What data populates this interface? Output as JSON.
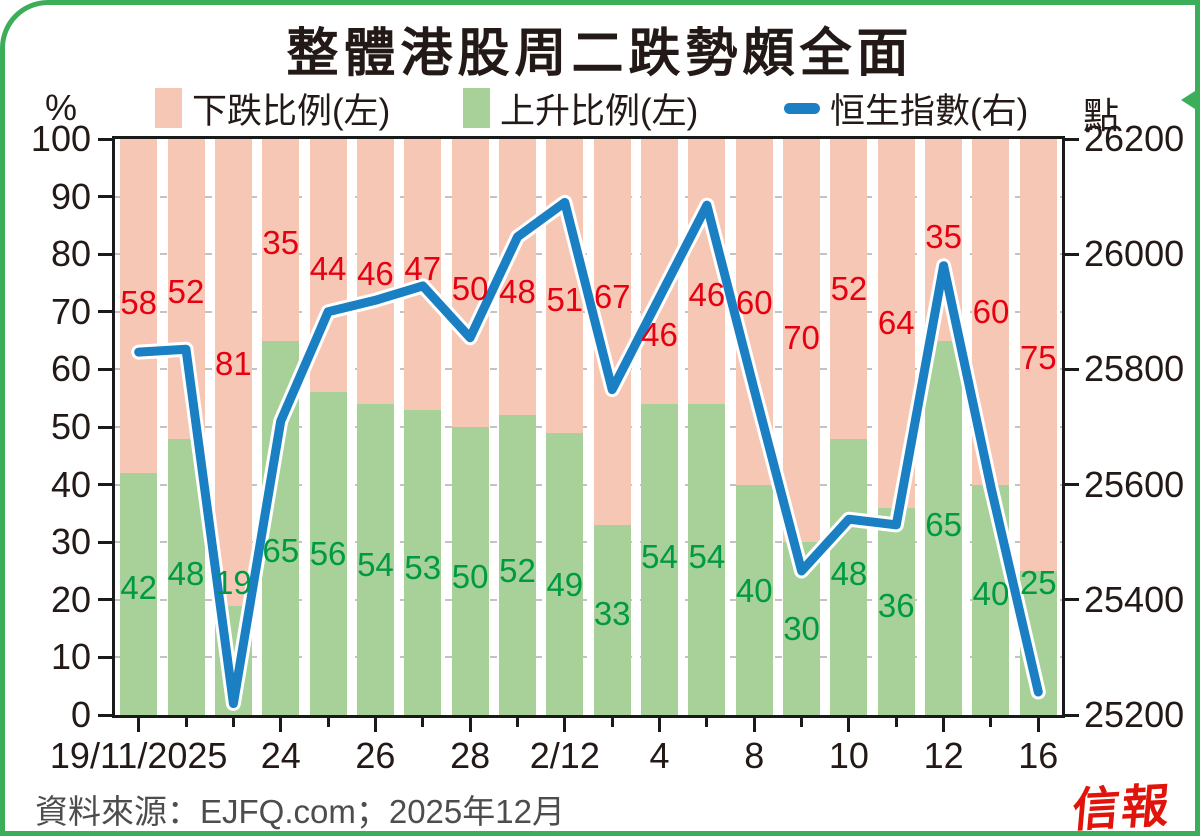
{
  "window": {
    "title": "整體港股周二跌勢頗全面"
  },
  "legend": [
    {
      "label": "下跌比例(左)",
      "swatch": "bar",
      "color": "#f6c7b4"
    },
    {
      "label": "上升比例(左)",
      "swatch": "bar",
      "color": "#a7d198"
    },
    {
      "label": "恒生指數(右)",
      "swatch": "line",
      "color": "#1b7fc3"
    }
  ],
  "axes": {
    "left_unit": "%",
    "right_unit": "點",
    "left_ticks": [
      100,
      90,
      80,
      70,
      60,
      50,
      40,
      30,
      20,
      10,
      0
    ],
    "right_ticks": [
      26200,
      26000,
      25800,
      25600,
      25400,
      25200
    ],
    "left_min": 0,
    "left_max": 100,
    "right_min": 25200,
    "right_max": 26200,
    "grid": "dashed horizontal every 10% behind bars"
  },
  "chart_data": {
    "type": "bar+line",
    "bar_count": 20,
    "categories": [
      "19/11/2025",
      "",
      "",
      "24",
      "",
      "26",
      "",
      "28",
      "",
      "2/12",
      "",
      "4",
      "",
      "8",
      "",
      "10",
      "",
      "12",
      "",
      "16"
    ],
    "x_major_ticks": [
      {
        "bar": 0,
        "label": "19/11/2025"
      },
      {
        "bar": 3,
        "label": "24"
      },
      {
        "bar": 5,
        "label": "26"
      },
      {
        "bar": 7,
        "label": "28"
      },
      {
        "bar": 9,
        "label": "2/12"
      },
      {
        "bar": 11,
        "label": "4"
      },
      {
        "bar": 13,
        "label": "8"
      },
      {
        "bar": 15,
        "label": "10"
      },
      {
        "bar": 17,
        "label": "12"
      },
      {
        "bar": 19,
        "label": "16"
      }
    ],
    "series": [
      {
        "name": "下跌比例(左)",
        "type": "bar",
        "axis": "left",
        "stack_pos": "top",
        "color": "#f6c7b4",
        "label_color": "#e60012",
        "values": [
          58,
          52,
          81,
          35,
          44,
          46,
          47,
          50,
          48,
          51,
          67,
          46,
          46,
          60,
          70,
          52,
          64,
          35,
          60,
          75
        ],
        "label_pos_pct": [
          71.5,
          73.5,
          61,
          82,
          77.5,
          76.5,
          77.5,
          74,
          73.5,
          72,
          72.5,
          66,
          73,
          71.5,
          65.5,
          74,
          68,
          83,
          70,
          62
        ]
      },
      {
        "name": "上升比例(左)",
        "type": "bar",
        "axis": "left",
        "stack_pos": "bottom",
        "color": "#a7d198",
        "label_color": "#009a44",
        "values": [
          42,
          48,
          19,
          65,
          56,
          54,
          53,
          50,
          52,
          49,
          33,
          54,
          54,
          40,
          30,
          48,
          36,
          65,
          40,
          25
        ],
        "label_pos_pct": [
          22,
          24.5,
          23,
          28.5,
          28,
          26,
          25.5,
          24,
          25,
          22.5,
          17.5,
          27.5,
          27.5,
          21.5,
          15,
          24.5,
          19,
          33,
          21,
          23
        ]
      },
      {
        "name": "恒生指數(右)",
        "type": "line",
        "axis": "right",
        "color": "#1b7fc3",
        "casing_color": "#ffffff",
        "values": [
          25830,
          25835,
          25220,
          25710,
          25900,
          25920,
          25945,
          25855,
          26030,
          26090,
          25765,
          25925,
          26085,
          25765,
          25450,
          25540,
          25530,
          25980,
          25595,
          25240
        ]
      }
    ]
  },
  "footer": {
    "source": "資料來源：EJFQ.com；2025年12月",
    "logo": "信報"
  },
  "colors": {
    "border_green": "#3cae5a",
    "bar_down_pink": "#f6c7b4",
    "bar_up_green": "#a7d198",
    "down_label_red": "#e60012",
    "up_label_green": "#009a44",
    "line_blue": "#1b7fc3",
    "axis_black": "#1a1a1a",
    "grid_gray": "#c3c3c3",
    "source_gray": "#4d4d4d",
    "logo_red": "#e0140a",
    "title_black": "#231916"
  }
}
